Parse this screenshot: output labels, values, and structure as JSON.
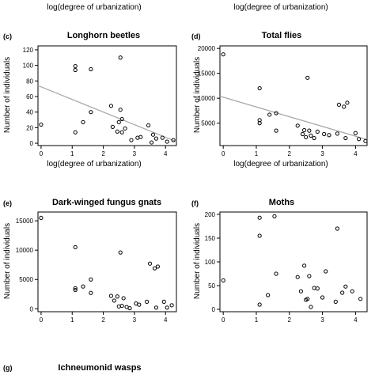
{
  "header_xlabels": [
    "log(degree of urbanization)",
    "log(degree of urbanization)"
  ],
  "footer": {
    "letter": "(g)",
    "title": "Ichneumonid wasps"
  },
  "chart_data": [
    {
      "letter": "(c)",
      "type": "scatter",
      "title": "Longhorn beetles",
      "xlabel": "log(degree of urbanization)",
      "ylabel": "Number of individuals",
      "xlim": [
        -0.1,
        4.35
      ],
      "ylim": [
        -3,
        125
      ],
      "xticks": [
        0,
        1,
        2,
        3,
        4
      ],
      "yticks": [
        0,
        20,
        40,
        60,
        80,
        100,
        120
      ],
      "points": [
        [
          0,
          24
        ],
        [
          1.1,
          99
        ],
        [
          1.1,
          94
        ],
        [
          1.1,
          14
        ],
        [
          1.35,
          27
        ],
        [
          1.6,
          95
        ],
        [
          1.6,
          40
        ],
        [
          2.25,
          48
        ],
        [
          2.3,
          21
        ],
        [
          2.45,
          15
        ],
        [
          2.5,
          27
        ],
        [
          2.55,
          110
        ],
        [
          2.55,
          43
        ],
        [
          2.6,
          31
        ],
        [
          2.6,
          14
        ],
        [
          2.7,
          19
        ],
        [
          2.9,
          4
        ],
        [
          3.1,
          7
        ],
        [
          3.2,
          8
        ],
        [
          3.45,
          23
        ],
        [
          3.55,
          1
        ],
        [
          3.6,
          11
        ],
        [
          3.7,
          6
        ],
        [
          3.9,
          7
        ],
        [
          4.05,
          2
        ],
        [
          4.25,
          4
        ]
      ],
      "trend": [
        [
          -0.1,
          74
        ],
        [
          4.35,
          2
        ]
      ]
    },
    {
      "letter": "(d)",
      "type": "scatter",
      "title": "Total flies",
      "xlabel": "log(degree of urbanization)",
      "ylabel": "Number of individuals",
      "xlim": [
        -0.1,
        4.35
      ],
      "ylim": [
        500,
        20500
      ],
      "xticks": [
        0,
        1,
        2,
        3,
        4
      ],
      "yticks": [
        5000,
        10000,
        15000,
        20000
      ],
      "ytick_labels": [
        "5000",
        "10000",
        "15000",
        "20000"
      ],
      "points": [
        [
          0,
          18800
        ],
        [
          1.1,
          12000
        ],
        [
          1.1,
          5600
        ],
        [
          1.1,
          5000
        ],
        [
          1.4,
          6700
        ],
        [
          1.6,
          3500
        ],
        [
          1.6,
          7000
        ],
        [
          2.25,
          4500
        ],
        [
          2.4,
          2800
        ],
        [
          2.45,
          3600
        ],
        [
          2.5,
          2200
        ],
        [
          2.55,
          14100
        ],
        [
          2.6,
          3500
        ],
        [
          2.65,
          2500
        ],
        [
          2.75,
          2000
        ],
        [
          2.85,
          3300
        ],
        [
          3.05,
          2800
        ],
        [
          3.2,
          2600
        ],
        [
          3.45,
          2900
        ],
        [
          3.5,
          8700
        ],
        [
          3.65,
          8300
        ],
        [
          3.75,
          9100
        ],
        [
          3.7,
          2000
        ],
        [
          4.0,
          3000
        ],
        [
          4.1,
          1800
        ],
        [
          4.3,
          1400
        ]
      ],
      "trend": [
        [
          -0.1,
          10400
        ],
        [
          4.35,
          1700
        ]
      ]
    },
    {
      "letter": "(e)",
      "type": "scatter",
      "title": "Dark-winged fungus gnats",
      "xlabel": "",
      "ylabel": "Number of individuals",
      "xlim": [
        -0.1,
        4.35
      ],
      "ylim": [
        -500,
        16500
      ],
      "xticks": [
        0,
        1,
        2,
        3,
        4
      ],
      "yticks": [
        0,
        5000,
        10000,
        15000
      ],
      "ytick_labels": [
        "0",
        "5000",
        "10000",
        "15000"
      ],
      "points": [
        [
          0,
          15500
        ],
        [
          1.1,
          10500
        ],
        [
          1.1,
          3500
        ],
        [
          1.1,
          3200
        ],
        [
          1.35,
          3800
        ],
        [
          1.6,
          5000
        ],
        [
          1.6,
          2700
        ],
        [
          2.25,
          2200
        ],
        [
          2.35,
          1400
        ],
        [
          2.45,
          2100
        ],
        [
          2.5,
          400
        ],
        [
          2.55,
          9600
        ],
        [
          2.6,
          500
        ],
        [
          2.65,
          1800
        ],
        [
          2.75,
          300
        ],
        [
          2.85,
          100
        ],
        [
          3.05,
          900
        ],
        [
          3.15,
          700
        ],
        [
          3.4,
          1200
        ],
        [
          3.5,
          7700
        ],
        [
          3.65,
          6900
        ],
        [
          3.75,
          7200
        ],
        [
          3.7,
          200
        ],
        [
          3.95,
          1200
        ],
        [
          4.05,
          200
        ],
        [
          4.2,
          600
        ]
      ],
      "trend": null
    },
    {
      "letter": "(f)",
      "type": "scatter",
      "title": "Moths",
      "xlabel": "",
      "ylabel": "Number of individuals",
      "xlim": [
        -0.1,
        4.35
      ],
      "ylim": [
        -5,
        205
      ],
      "xticks": [
        0,
        1,
        2,
        3,
        4
      ],
      "yticks": [
        0,
        50,
        100,
        150,
        200
      ],
      "points": [
        [
          0,
          61
        ],
        [
          1.1,
          193
        ],
        [
          1.1,
          155
        ],
        [
          1.1,
          10
        ],
        [
          1.35,
          30
        ],
        [
          1.55,
          196
        ],
        [
          1.6,
          75
        ],
        [
          2.25,
          68
        ],
        [
          2.35,
          38
        ],
        [
          2.45,
          92
        ],
        [
          2.5,
          20
        ],
        [
          2.55,
          22
        ],
        [
          2.6,
          70
        ],
        [
          2.65,
          5
        ],
        [
          2.75,
          45
        ],
        [
          2.85,
          44
        ],
        [
          3.0,
          25
        ],
        [
          3.1,
          80
        ],
        [
          3.4,
          16
        ],
        [
          3.45,
          170
        ],
        [
          3.6,
          35
        ],
        [
          3.7,
          48
        ],
        [
          3.9,
          38
        ],
        [
          4.15,
          22
        ]
      ],
      "trend": null
    }
  ]
}
